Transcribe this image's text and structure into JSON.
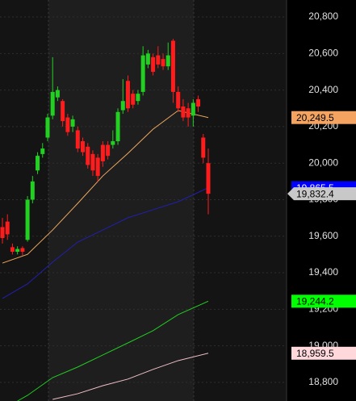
{
  "chart_data": {
    "type": "candlestick",
    "ylim": [
      18698,
      20893
    ],
    "yticks": [
      {
        "value": 18800,
        "label": "18,800"
      },
      {
        "value": 19000,
        "label": "19,000"
      },
      {
        "value": 19200,
        "label": "19,200"
      },
      {
        "value": 19400,
        "label": "19,400"
      },
      {
        "value": 19600,
        "label": "19,600"
      },
      {
        "value": 19800,
        "label": "19,800"
      },
      {
        "value": 20000,
        "label": "20,000"
      },
      {
        "value": 20200,
        "label": "20,200"
      },
      {
        "value": 20400,
        "label": "20,400"
      },
      {
        "value": 20600,
        "label": "20,600"
      },
      {
        "value": 20800,
        "label": "20,800"
      }
    ],
    "grid": true,
    "up_color": "#22d022",
    "down_color": "#ff1c1c",
    "candles": {
      "open": [
        19650,
        19680,
        19540,
        19515,
        19535,
        19580,
        19800,
        19960,
        20050,
        20140,
        20260,
        20360,
        20340,
        20250,
        20200,
        20180,
        20120,
        20090,
        20050,
        20030,
        20100,
        20100,
        20100,
        20120,
        20290,
        20450,
        20380,
        20340,
        20390,
        20540,
        20580,
        20590,
        20570,
        20530,
        20670,
        20390,
        20310,
        20300,
        20260,
        20350,
        20140,
        20000
      ],
      "high": [
        19700,
        19720,
        19560,
        19545,
        19545,
        19820,
        19930,
        20060,
        20110,
        20270,
        20580,
        20420,
        20350,
        20270,
        20260,
        20200,
        20140,
        20110,
        20070,
        20050,
        20120,
        20120,
        20180,
        20300,
        20460,
        20480,
        20400,
        20400,
        20640,
        20620,
        20600,
        20640,
        20600,
        20660,
        20680,
        20420,
        20350,
        20330,
        20350,
        20370,
        20160,
        20080
      ],
      "low": [
        19560,
        19580,
        19500,
        19500,
        19495,
        19570,
        19780,
        19940,
        20030,
        20120,
        20240,
        20340,
        20200,
        20150,
        20170,
        20060,
        20040,
        19970,
        19930,
        19900,
        19980,
        20020,
        20080,
        20100,
        20270,
        20280,
        20300,
        20320,
        20370,
        20520,
        20480,
        20520,
        20510,
        20510,
        20330,
        20280,
        20230,
        20200,
        20200,
        20280,
        20000,
        19720
      ],
      "close": [
        19590,
        19610,
        19515,
        19530,
        19515,
        19800,
        19900,
        20040,
        20080,
        20250,
        20390,
        20400,
        20230,
        20170,
        20240,
        20080,
        20060,
        19990,
        19960,
        19930,
        20010,
        20040,
        20120,
        20280,
        20340,
        20300,
        20320,
        20380,
        20590,
        20600,
        20500,
        20540,
        20530,
        20590,
        20390,
        20300,
        20250,
        20250,
        20330,
        20310,
        20030,
        19832.4
      ],
      "last_label": {
        "value": 19832.4,
        "label": "19,832.4"
      },
      "label_color": "#c8c8c8"
    },
    "series": [
      {
        "color": "#f0a860",
        "x": [
          0,
          5,
          10,
          15,
          20,
          25,
          30,
          35,
          41
        ],
        "values": [
          19453,
          19501,
          19634,
          19780,
          19930,
          20054,
          20186,
          20288,
          20249.5
        ],
        "value_labels": [
          null,
          null,
          null,
          null,
          null,
          null,
          null,
          null,
          "20,249.5"
        ]
      },
      {
        "color": "#2020b0",
        "x": [
          0,
          5,
          10,
          15,
          20,
          25,
          30,
          35,
          41
        ],
        "values": [
          19259,
          19339,
          19458,
          19568,
          19634,
          19701,
          19745,
          19789,
          19865.5
        ],
        "value_labels": [
          null,
          null,
          null,
          null,
          null,
          null,
          null,
          null,
          "19,865.5"
        ]
      },
      {
        "color": "#22cc22",
        "x": [
          3,
          5,
          10,
          15,
          20,
          25,
          30,
          35,
          41
        ],
        "values": [
          18698,
          18729,
          18826,
          18884,
          18950,
          19016,
          19083,
          19171,
          19244.2
        ],
        "value_labels": [
          null,
          null,
          null,
          null,
          null,
          null,
          null,
          null,
          "19,244.2"
        ]
      },
      {
        "color": "#f0c0c8",
        "x": [
          10,
          15,
          20,
          25,
          30,
          35,
          41
        ],
        "values": [
          18707,
          18738,
          18782,
          18818,
          18871,
          18919,
          18959.5
        ],
        "value_labels": [
          null,
          null,
          null,
          null,
          null,
          null,
          "18,959.5"
        ]
      }
    ]
  }
}
